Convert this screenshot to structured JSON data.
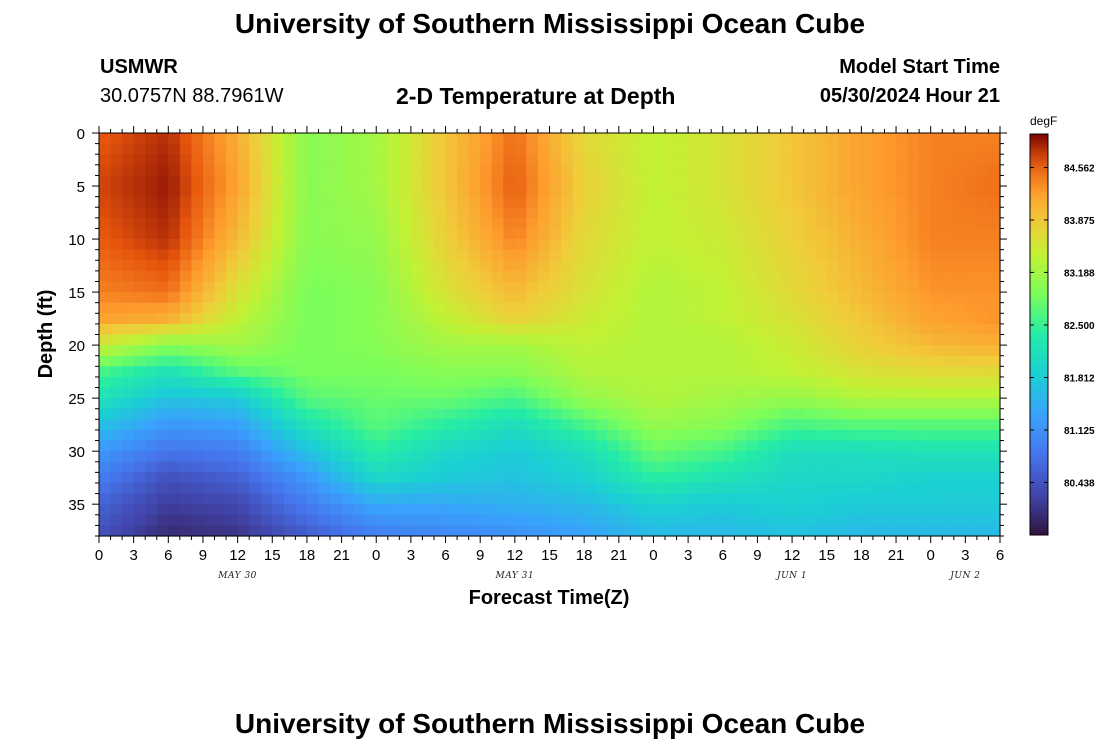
{
  "header": {
    "title": "University of Southern Mississippi Ocean Cube",
    "station_id": "USMWR",
    "coordinates": "30.0757N  88.7961W",
    "plot_title": "2-D Temperature at Depth",
    "model_start_label": "Model Start Time",
    "model_start_value": "05/30/2024 Hour 21"
  },
  "footer": {
    "title": "University of Southern Mississippi Ocean Cube"
  },
  "chart_data": {
    "type": "heatmap",
    "title": "2-D Temperature at Depth",
    "xlabel": "Forecast Time(Z)",
    "ylabel": "Depth (ft)",
    "x_ticks": [
      "0",
      "3",
      "6",
      "9",
      "12",
      "15",
      "18",
      "21",
      "0",
      "3",
      "6",
      "9",
      "12",
      "15",
      "18",
      "21",
      "0",
      "3",
      "6",
      "9",
      "12",
      "15",
      "18",
      "21",
      "0",
      "3",
      "6"
    ],
    "x_range_hours": [
      0,
      78
    ],
    "date_labels": [
      {
        "text": "MAY 30",
        "hour": 12
      },
      {
        "text": "MAY 31",
        "hour": 36
      },
      {
        "text": "JUN 1",
        "hour": 60
      },
      {
        "text": "JUN 2",
        "hour": 75
      }
    ],
    "y_ticks": [
      "0",
      "5",
      "10",
      "15",
      "20",
      "25",
      "30",
      "35"
    ],
    "y_range_ft": [
      0,
      38
    ],
    "colorbar": {
      "unit": "degF",
      "min": 79.75,
      "max": 85.0,
      "ticks": [
        "84.562",
        "83.875",
        "83.188",
        "82.500",
        "81.812",
        "81.125",
        "80.438"
      ]
    },
    "grid": {
      "time_hours": [
        0,
        6,
        12,
        18,
        24,
        30,
        36,
        42,
        48,
        54,
        60,
        66,
        72,
        78
      ],
      "depth_ft": [
        0,
        5,
        10,
        15,
        17.5,
        20,
        22.5,
        25,
        27.5,
        30,
        32.5,
        35,
        38
      ],
      "values_degF": [
        [
          84.6,
          84.8,
          84.1,
          83.0,
          83.2,
          83.9,
          84.5,
          83.7,
          83.4,
          83.6,
          83.9,
          84.2,
          84.4,
          84.4
        ],
        [
          84.7,
          84.9,
          84.2,
          83.0,
          83.2,
          83.9,
          84.6,
          83.8,
          83.4,
          83.6,
          83.9,
          84.2,
          84.4,
          84.5
        ],
        [
          84.6,
          84.8,
          84.0,
          83.0,
          83.1,
          83.8,
          84.4,
          83.7,
          83.4,
          83.5,
          83.8,
          84.1,
          84.4,
          84.4
        ],
        [
          84.4,
          84.5,
          83.6,
          82.9,
          83.0,
          83.6,
          84.0,
          83.6,
          83.3,
          83.4,
          83.7,
          84.0,
          84.3,
          84.3
        ],
        [
          84.2,
          84.1,
          83.4,
          82.9,
          83.0,
          83.4,
          83.8,
          83.5,
          83.3,
          83.4,
          83.6,
          83.9,
          84.2,
          84.3
        ],
        [
          83.5,
          83.0,
          83.2,
          82.9,
          83.0,
          83.2,
          83.2,
          83.4,
          83.3,
          83.3,
          83.5,
          83.8,
          84.0,
          84.1
        ],
        [
          82.6,
          82.2,
          82.7,
          82.9,
          82.9,
          83.0,
          83.0,
          83.3,
          83.3,
          83.3,
          83.4,
          83.6,
          83.7,
          83.7
        ],
        [
          82.2,
          81.7,
          81.8,
          82.7,
          82.8,
          82.8,
          82.6,
          83.1,
          83.3,
          83.2,
          83.1,
          83.3,
          83.3,
          83.3
        ],
        [
          81.7,
          81.2,
          81.3,
          82.2,
          82.7,
          82.4,
          82.1,
          82.6,
          83.1,
          83.0,
          82.6,
          82.7,
          82.7,
          82.7
        ],
        [
          81.2,
          80.8,
          80.9,
          81.7,
          82.4,
          82.0,
          81.8,
          82.1,
          82.8,
          82.6,
          82.1,
          82.1,
          82.2,
          82.2
        ],
        [
          80.9,
          80.4,
          80.6,
          81.2,
          82.0,
          81.8,
          81.7,
          81.9,
          82.4,
          82.2,
          82.0,
          82.0,
          81.9,
          81.9
        ],
        [
          80.6,
          80.2,
          80.3,
          80.9,
          81.4,
          81.4,
          81.5,
          81.6,
          81.9,
          81.8,
          81.9,
          81.8,
          81.8,
          81.8
        ],
        [
          80.4,
          80.0,
          80.1,
          80.5,
          80.9,
          81.0,
          81.1,
          81.3,
          81.6,
          81.6,
          81.7,
          81.6,
          81.6,
          81.6
        ]
      ]
    }
  }
}
